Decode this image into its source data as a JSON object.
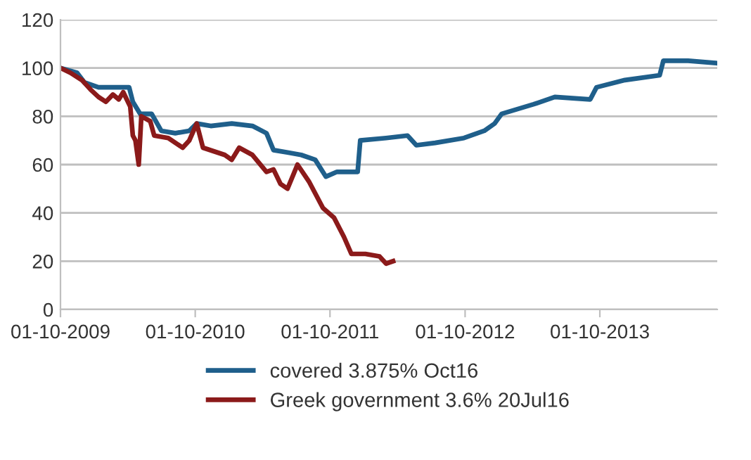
{
  "chart_data": {
    "type": "line",
    "ylim": [
      0,
      120
    ],
    "yticks": [
      0,
      20,
      40,
      60,
      80,
      100,
      120
    ],
    "xlim": [
      "2009-10-01",
      "2014-08-15"
    ],
    "xticks": [
      {
        "value": "2009-10-01",
        "label": "01-10-2009"
      },
      {
        "value": "2010-10-01",
        "label": "01-10-2010"
      },
      {
        "value": "2011-10-01",
        "label": "01-10-2011"
      },
      {
        "value": "2012-10-01",
        "label": "01-10-2012"
      },
      {
        "value": "2013-10-01",
        "label": "01-10-2013"
      }
    ],
    "grid": "y",
    "legend": "bottom",
    "marker": "none",
    "line_style": "solid",
    "series": [
      {
        "name": "covered 3.875% Oct16",
        "color": "#1f5f8b",
        "x": [
          "2009-10-01",
          "2009-11-15",
          "2009-12-05",
          "2010-01-12",
          "2010-02-20",
          "2010-04-05",
          "2010-04-15",
          "2010-05-05",
          "2010-06-05",
          "2010-07-01",
          "2010-08-08",
          "2010-09-15",
          "2010-10-05",
          "2010-11-12",
          "2011-01-08",
          "2011-03-05",
          "2011-04-12",
          "2011-05-01",
          "2011-06-08",
          "2011-07-15",
          "2011-08-22",
          "2011-09-20",
          "2011-10-20",
          "2011-12-15",
          "2011-12-22",
          "2012-03-01",
          "2012-04-28",
          "2012-05-22",
          "2012-07-12",
          "2012-09-28",
          "2012-11-22",
          "2012-12-20",
          "2013-01-08",
          "2013-04-05",
          "2013-06-01",
          "2013-09-05",
          "2013-09-22",
          "2013-12-08",
          "2014-03-12",
          "2014-03-22",
          "2014-05-28",
          "2014-08-15"
        ],
        "values": [
          100,
          98,
          94,
          92,
          92,
          92,
          86,
          81,
          81,
          74,
          73,
          74,
          77,
          76,
          77,
          76,
          73,
          66,
          65,
          64,
          62,
          55,
          57,
          57,
          70,
          71,
          72,
          68,
          69,
          71,
          74,
          77,
          81,
          85,
          88,
          87,
          92,
          95,
          97,
          103,
          103,
          102
        ]
      },
      {
        "name": "Greek government 3.6% 20Jul16",
        "color": "#8b1a1a",
        "x": [
          "2009-10-01",
          "2009-10-28",
          "2009-11-28",
          "2009-12-22",
          "2010-01-12",
          "2010-02-01",
          "2010-02-20",
          "2010-03-08",
          "2010-03-20",
          "2010-04-08",
          "2010-04-15",
          "2010-04-22",
          "2010-05-01",
          "2010-05-08",
          "2010-06-01",
          "2010-06-12",
          "2010-07-20",
          "2010-08-28",
          "2010-09-15",
          "2010-10-05",
          "2010-10-22",
          "2010-12-20",
          "2011-01-08",
          "2011-01-28",
          "2011-03-05",
          "2011-04-12",
          "2011-05-01",
          "2011-05-20",
          "2011-06-08",
          "2011-07-05",
          "2011-08-05",
          "2011-09-12",
          "2011-10-12",
          "2011-11-08",
          "2011-11-28",
          "2012-01-05",
          "2012-02-12",
          "2012-03-01",
          "2012-03-20"
        ],
        "values": [
          100,
          98,
          95,
          91,
          88,
          86,
          89,
          87,
          90,
          84,
          72,
          70,
          60,
          80,
          78,
          72,
          71,
          67,
          70,
          77,
          67,
          64,
          62,
          67,
          64,
          57,
          58,
          52,
          50,
          60,
          53,
          42,
          38,
          30,
          23,
          23,
          22,
          19,
          20
        ]
      }
    ]
  }
}
